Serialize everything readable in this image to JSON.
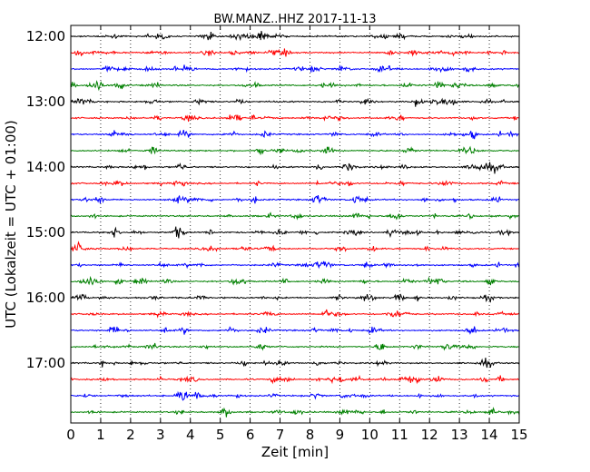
{
  "chart_data": {
    "type": "line",
    "title": "BW.MANZ..HHZ 2017-11-13",
    "xlabel": "Zeit  [min]",
    "ylabel": "UTC (Lokalzeit = UTC + 01:00)",
    "xlim": [
      0,
      15
    ],
    "x_ticks": [
      "0",
      "1",
      "2",
      "3",
      "4",
      "5",
      "6",
      "7",
      "8",
      "9",
      "10",
      "11",
      "12",
      "13",
      "14",
      "15"
    ],
    "y_ticks": [
      "12:00",
      "13:00",
      "14:00",
      "15:00",
      "16:00",
      "17:00"
    ],
    "grid": {
      "x": true,
      "style": "dotted"
    },
    "trace_colors": [
      "#000000",
      "#ff0000",
      "#0000ff",
      "#008000"
    ],
    "trace_count": 24,
    "trace_interval_min": 15,
    "start_time": "12:00"
  }
}
